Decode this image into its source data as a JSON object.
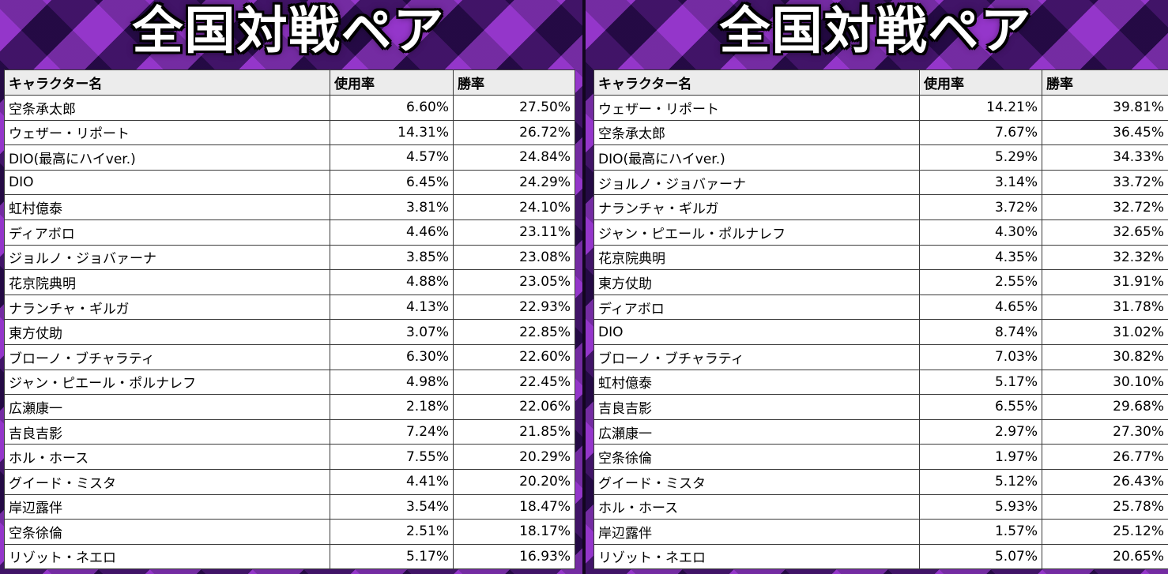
{
  "panels": [
    {
      "title": "全国対戦ペア",
      "columns": [
        "キャラクター名",
        "使用率",
        "勝率"
      ],
      "rows": [
        [
          "空条承太郎",
          "6.60%",
          "27.50%"
        ],
        [
          "ウェザー・リポート",
          "14.31%",
          "26.72%"
        ],
        [
          "DIO(最高にハイver.)",
          "4.57%",
          "24.84%"
        ],
        [
          "DIO",
          "6.45%",
          "24.29%"
        ],
        [
          "虹村億泰",
          "3.81%",
          "24.10%"
        ],
        [
          "ディアボロ",
          "4.46%",
          "23.11%"
        ],
        [
          "ジョルノ・ジョバァーナ",
          "3.85%",
          "23.08%"
        ],
        [
          "花京院典明",
          "4.88%",
          "23.05%"
        ],
        [
          "ナランチャ・ギルガ",
          "4.13%",
          "22.93%"
        ],
        [
          "東方仗助",
          "3.07%",
          "22.85%"
        ],
        [
          "ブローノ・ブチャラティ",
          "6.30%",
          "22.60%"
        ],
        [
          "ジャン・ピエール・ポルナレフ",
          "4.98%",
          "22.45%"
        ],
        [
          "広瀬康一",
          "2.18%",
          "22.06%"
        ],
        [
          "吉良吉影",
          "7.24%",
          "21.85%"
        ],
        [
          "ホル・ホース",
          "7.55%",
          "20.29%"
        ],
        [
          "グイード・ミスタ",
          "4.41%",
          "20.20%"
        ],
        [
          "岸辺露伴",
          "3.54%",
          "18.47%"
        ],
        [
          "空条徐倫",
          "2.51%",
          "18.17%"
        ],
        [
          "リゾット・ネエロ",
          "5.17%",
          "16.93%"
        ]
      ]
    },
    {
      "title": "全国対戦ペア",
      "columns": [
        "キャラクター名",
        "使用率",
        "勝率"
      ],
      "rows": [
        [
          "ウェザー・リポート",
          "14.21%",
          "39.81%"
        ],
        [
          "空条承太郎",
          "7.67%",
          "36.45%"
        ],
        [
          "DIO(最高にハイver.)",
          "5.29%",
          "34.33%"
        ],
        [
          "ジョルノ・ジョバァーナ",
          "3.14%",
          "33.72%"
        ],
        [
          "ナランチャ・ギルガ",
          "3.72%",
          "32.72%"
        ],
        [
          "ジャン・ピエール・ポルナレフ",
          "4.30%",
          "32.65%"
        ],
        [
          "花京院典明",
          "4.35%",
          "32.32%"
        ],
        [
          "東方仗助",
          "2.55%",
          "31.91%"
        ],
        [
          "ディアボロ",
          "4.65%",
          "31.78%"
        ],
        [
          "DIO",
          "8.74%",
          "31.02%"
        ],
        [
          "ブローノ・ブチャラティ",
          "7.03%",
          "30.82%"
        ],
        [
          "虹村億泰",
          "5.17%",
          "30.10%"
        ],
        [
          "吉良吉影",
          "6.55%",
          "29.68%"
        ],
        [
          "広瀬康一",
          "2.97%",
          "27.30%"
        ],
        [
          "空条徐倫",
          "1.97%",
          "26.77%"
        ],
        [
          "グイード・ミスタ",
          "5.12%",
          "26.43%"
        ],
        [
          "ホル・ホース",
          "5.93%",
          "25.78%"
        ],
        [
          "岸辺露伴",
          "1.57%",
          "25.12%"
        ],
        [
          "リゾット・ネエロ",
          "5.07%",
          "20.65%"
        ]
      ]
    }
  ]
}
